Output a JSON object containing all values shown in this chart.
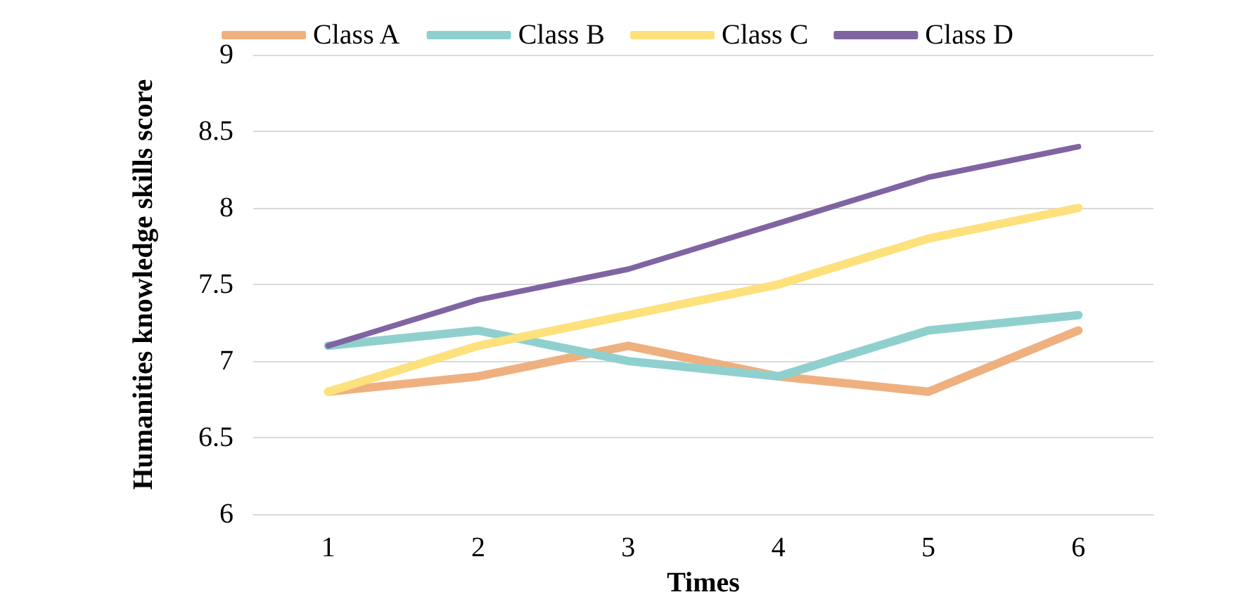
{
  "chart_data": {
    "type": "line",
    "xlabel": "Times",
    "ylabel": "Humanities knowledge skills score",
    "categories": [
      "1",
      "2",
      "3",
      "4",
      "5",
      "6"
    ],
    "series": [
      {
        "name": "Class A",
        "color": "#efb07f",
        "values": [
          6.8,
          6.9,
          7.1,
          6.9,
          6.8,
          7.2
        ]
      },
      {
        "name": "Class B",
        "color": "#8fd0cf",
        "values": [
          7.1,
          7.2,
          7.0,
          6.9,
          7.2,
          7.3
        ]
      },
      {
        "name": "Class C",
        "color": "#fde17c",
        "values": [
          6.8,
          7.1,
          7.3,
          7.5,
          7.8,
          8.0
        ]
      },
      {
        "name": "Class D",
        "color": "#8064a2",
        "values": [
          7.1,
          7.4,
          7.6,
          7.9,
          8.2,
          8.4
        ]
      }
    ],
    "ylim": [
      6,
      9
    ],
    "yticks": [
      6,
      6.5,
      7,
      7.5,
      8,
      8.5,
      9
    ],
    "grid": "y",
    "legend": "top",
    "marker": "none",
    "line_style": "solid"
  }
}
